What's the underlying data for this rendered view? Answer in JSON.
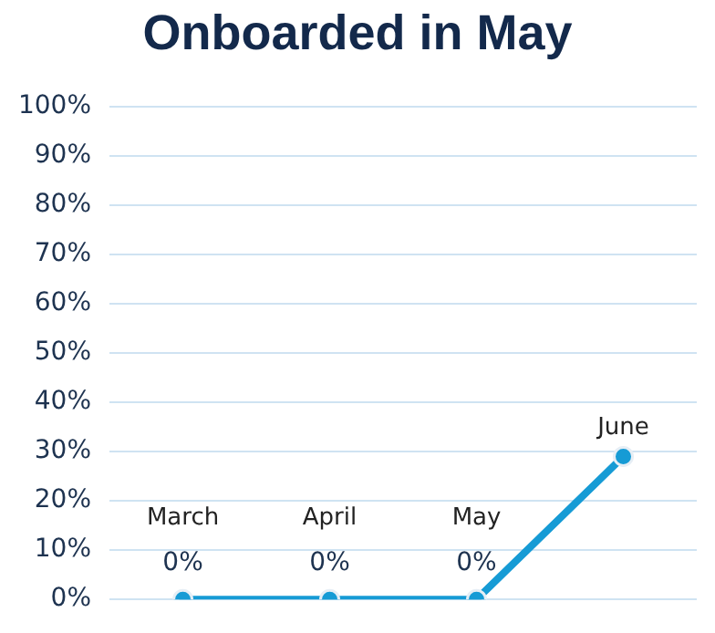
{
  "chart_data": {
    "type": "line",
    "title": "Onboarded in May",
    "categories": [
      "March",
      "April",
      "May",
      "June"
    ],
    "series": [
      {
        "color": "#169bd5",
        "values": [
          0,
          0,
          0,
          29
        ],
        "value_labels": [
          "0%",
          "0%",
          "0%",
          null
        ]
      }
    ],
    "ylim": [
      0,
      100
    ],
    "yticks": [
      {
        "value": 0,
        "label": "0%"
      },
      {
        "value": 10,
        "label": "10%"
      },
      {
        "value": 20,
        "label": "20%"
      },
      {
        "value": 30,
        "label": "30%"
      },
      {
        "value": 40,
        "label": "40%"
      },
      {
        "value": 50,
        "label": "50%"
      },
      {
        "value": 60,
        "label": "60%"
      },
      {
        "value": 70,
        "label": "70%"
      },
      {
        "value": 80,
        "label": "80%"
      },
      {
        "value": 90,
        "label": "90%"
      },
      {
        "value": 100,
        "label": "100%"
      }
    ],
    "grid": "y",
    "legend": false,
    "marker": "circle",
    "line_style": "solid"
  }
}
